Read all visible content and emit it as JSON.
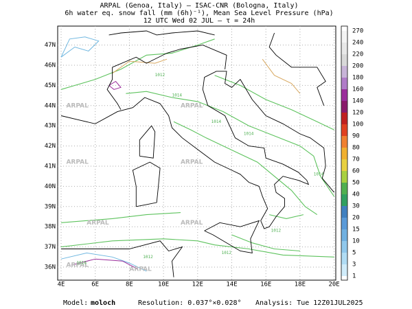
{
  "header": {
    "lines": [
      "ARPAL (Genoa, Italy)  —  ISAC-CNR (Bologna, Italy)",
      "6h water eq. snow fall (mm (6h)⁻¹), Mean Sea Level Pressure (hPa)",
      "12 UTC Wed 02 JUL  —  τ = 24h"
    ]
  },
  "axes": {
    "x_labels": [
      "4E",
      "6E",
      "8E",
      "10E",
      "12E",
      "14E",
      "16E",
      "18E",
      "20E"
    ],
    "y_labels": [
      "36N",
      "37N",
      "38N",
      "39N",
      "40N",
      "41N",
      "42N",
      "43N",
      "44N",
      "45N",
      "46N",
      "47N"
    ]
  },
  "colorbar": {
    "labels": [
      "270",
      "240",
      "220",
      "200",
      "180",
      "160",
      "140",
      "120",
      "100",
      "90",
      "80",
      "70",
      "60",
      "50",
      "40",
      "30",
      "20",
      "15",
      "10",
      "5",
      "3",
      "1"
    ]
  },
  "watermark": "ARPAL",
  "isobar_labels": [
    "1012",
    "1014",
    "1016"
  ],
  "footer": {
    "model_label": "Model:",
    "model": "moloch",
    "resolution": "Resolution: 0.037°×0.028°",
    "analysis": "Analysis: Tue 12Z01JUL2025"
  }
}
